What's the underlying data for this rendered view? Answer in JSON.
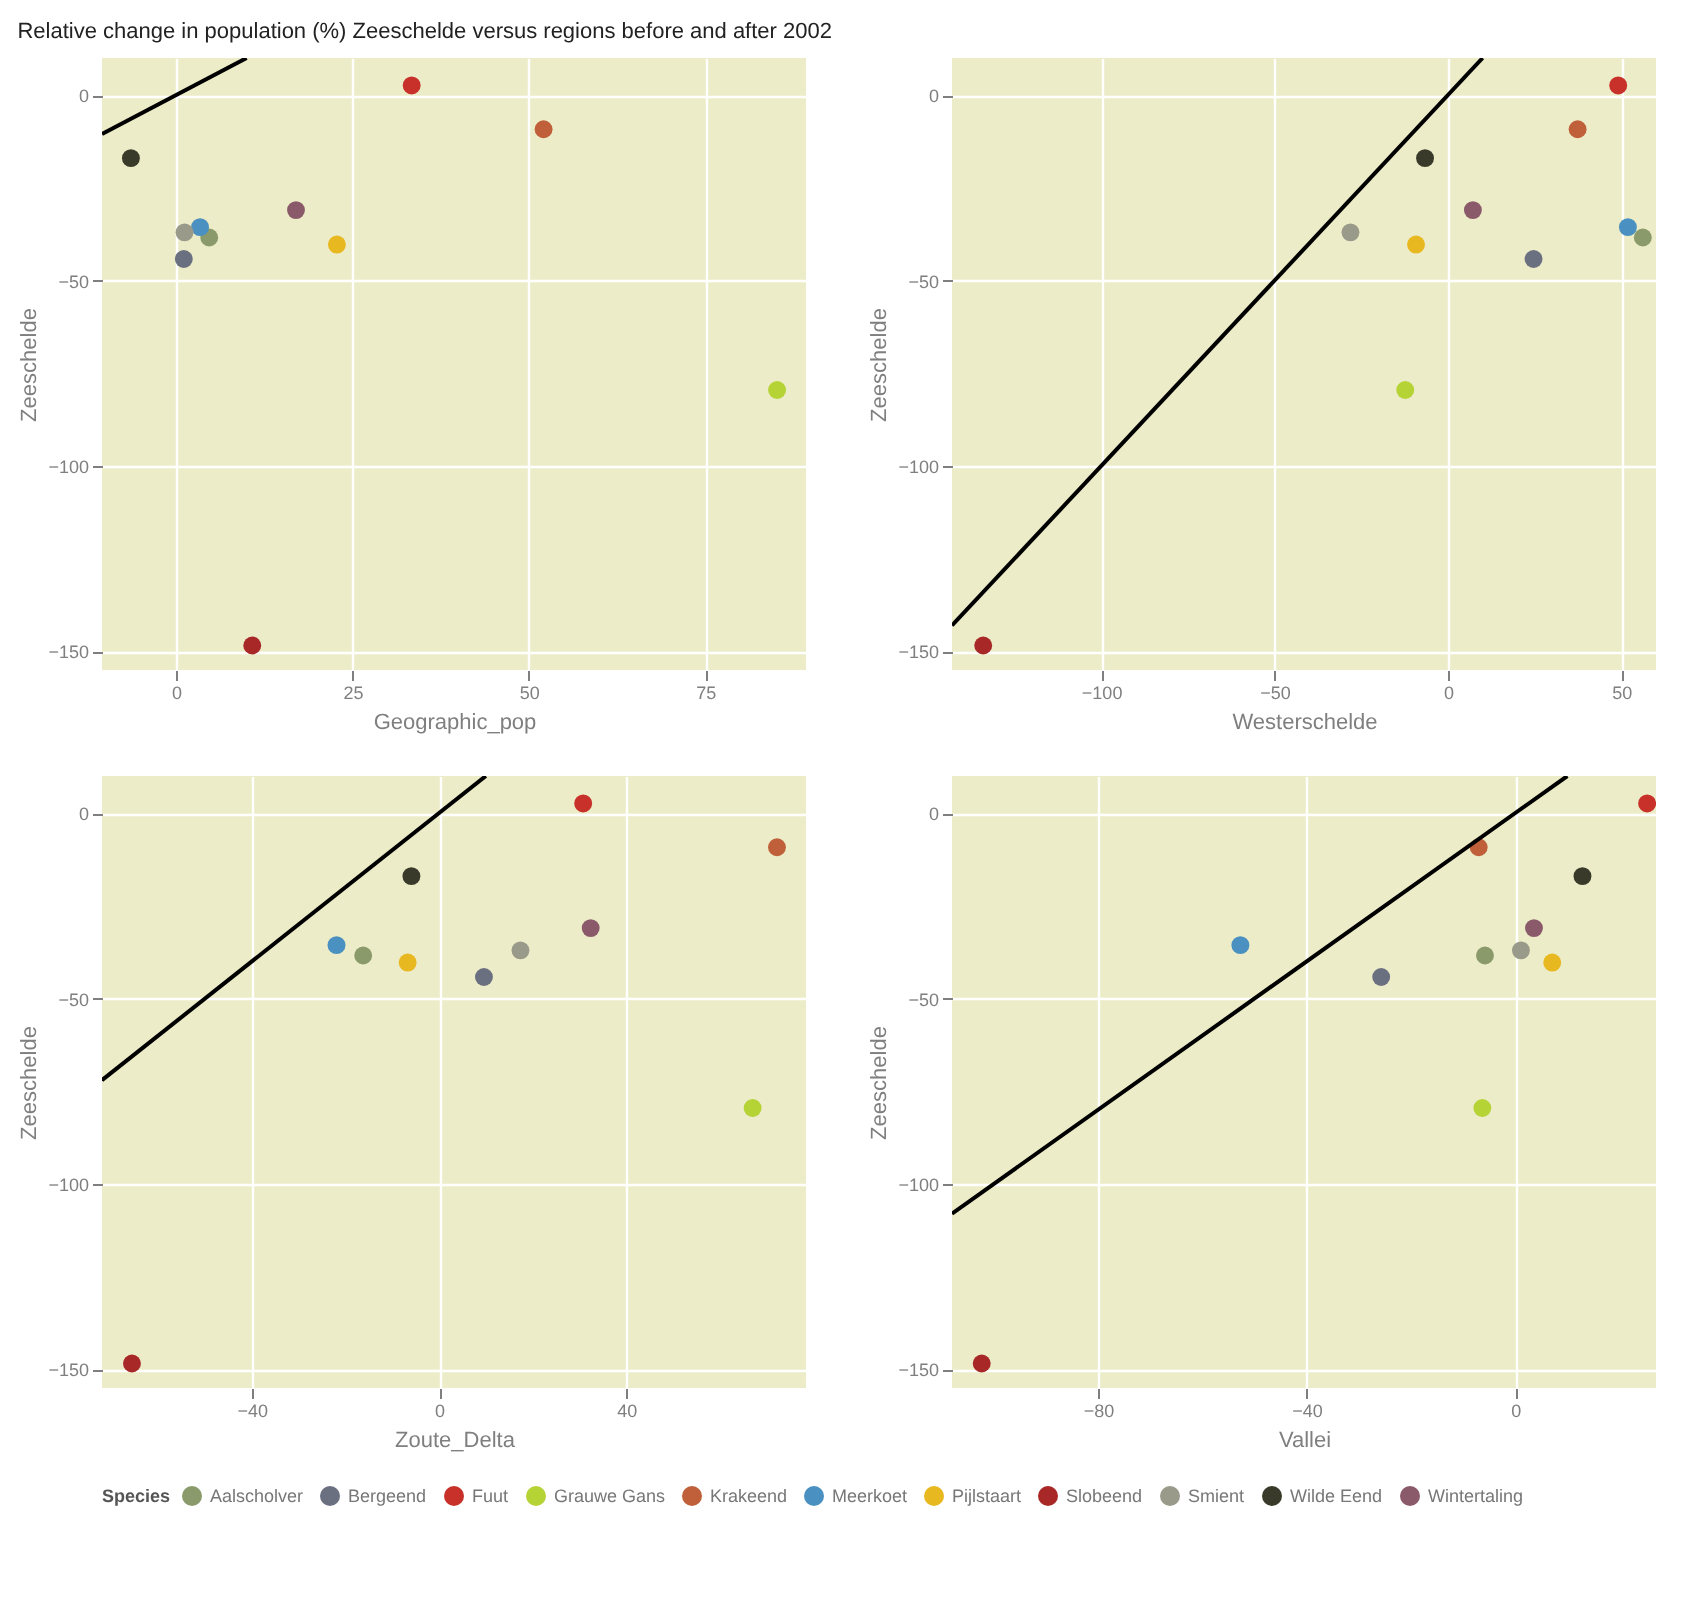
{
  "chart_data": [
    {
      "type": "scatter",
      "title": "Relative change in population (%) Zeeschelde versus regions before and after 2002",
      "xlabel": "Geographic_pop",
      "ylabel": "Zeeschelde",
      "legend": "bottom",
      "legend_title": "Species",
      "marker": "circle",
      "grid": true,
      "xlim": [
        -10.5,
        89.3
      ],
      "ylim": [
        -155,
        10
      ],
      "xticks": [
        0,
        25,
        50,
        75
      ],
      "yticks": [
        -150,
        -100,
        -50,
        0
      ],
      "series": [
        {
          "name": "Aalscholver",
          "color": "#8b9a6b",
          "x": [
            4.7
          ],
          "values": [
            -38.4
          ]
        },
        {
          "name": "Bergeend",
          "color": "#6b7080",
          "x": [
            1.1
          ],
          "values": [
            -44.2
          ]
        },
        {
          "name": "Fuut",
          "color": "#c8302a",
          "x": [
            33.4
          ],
          "values": [
            2.6
          ]
        },
        {
          "name": "Grauwe Gans",
          "color": "#b5d334",
          "x": [
            85.2
          ],
          "values": [
            -79.5
          ]
        },
        {
          "name": "Krakeend",
          "color": "#c0603a",
          "x": [
            52.1
          ],
          "values": [
            -9.2
          ]
        },
        {
          "name": "Meerkoet",
          "color": "#4a90c0",
          "x": [
            3.4
          ],
          "values": [
            -35.6
          ]
        },
        {
          "name": "Pijlstaart",
          "color": "#e8b820",
          "x": [
            22.8
          ],
          "values": [
            -40.3
          ]
        },
        {
          "name": "Slobeend",
          "color": "#a82828",
          "x": [
            10.8
          ],
          "values": [
            -148.4
          ]
        },
        {
          "name": "Smient",
          "color": "#9a9a8a",
          "x": [
            1.2
          ],
          "values": [
            -37.0
          ]
        },
        {
          "name": "Wilde Eend",
          "color": "#3a3a2a",
          "x": [
            -6.4
          ],
          "values": [
            -17.0
          ]
        },
        {
          "name": "Wintertaling",
          "color": "#8a5a6a",
          "x": [
            17.0
          ],
          "values": [
            -31.0
          ]
        },
        {
          "type": "line",
          "marker": "none",
          "color": "#000000",
          "x": [
            -10.5,
            10
          ],
          "values": [
            -10.5,
            10
          ]
        }
      ]
    },
    {
      "type": "scatter",
      "xlabel": "Westerschelde",
      "ylabel": "Zeeschelde",
      "marker": "circle",
      "grid": true,
      "xlim": [
        -143,
        60
      ],
      "ylim": [
        -155,
        10
      ],
      "xticks": [
        -100,
        -50,
        0,
        50
      ],
      "yticks": [
        -150,
        -100,
        -50,
        0
      ],
      "series": [
        {
          "name": "Aalscholver",
          "color": "#8b9a6b",
          "x": [
            56.2
          ],
          "values": [
            -38.4
          ]
        },
        {
          "name": "Bergeend",
          "color": "#6b7080",
          "x": [
            24.7
          ],
          "values": [
            -44.2
          ]
        },
        {
          "name": "Fuut",
          "color": "#c8302a",
          "x": [
            49.1
          ],
          "values": [
            2.6
          ]
        },
        {
          "name": "Grauwe Gans",
          "color": "#b5d334",
          "x": [
            -12.3
          ],
          "values": [
            -79.5
          ]
        },
        {
          "name": "Krakeend",
          "color": "#c0603a",
          "x": [
            37.4
          ],
          "values": [
            -9.2
          ]
        },
        {
          "name": "Meerkoet",
          "color": "#4a90c0",
          "x": [
            51.9
          ],
          "values": [
            -35.6
          ]
        },
        {
          "name": "Pijlstaart",
          "color": "#e8b820",
          "x": [
            -9.2
          ],
          "values": [
            -40.3
          ]
        },
        {
          "name": "Slobeend",
          "color": "#a82828",
          "x": [
            -134
          ],
          "values": [
            -148.4
          ]
        },
        {
          "name": "Smient",
          "color": "#9a9a8a",
          "x": [
            -28.1
          ],
          "values": [
            -37.0
          ]
        },
        {
          "name": "Wilde Eend",
          "color": "#3a3a2a",
          "x": [
            -6.6
          ],
          "values": [
            -17.0
          ]
        },
        {
          "name": "Wintertaling",
          "color": "#8a5a6a",
          "x": [
            7.2
          ],
          "values": [
            -31.0
          ]
        },
        {
          "type": "line",
          "marker": "none",
          "color": "#000000",
          "x": [
            -143,
            10
          ],
          "values": [
            -143,
            10
          ]
        }
      ]
    },
    {
      "type": "scatter",
      "xlabel": "Zoute_Delta",
      "ylabel": "Zeeschelde",
      "marker": "circle",
      "grid": true,
      "xlim": [
        -72,
        78.4
      ],
      "ylim": [
        -155,
        10
      ],
      "xticks": [
        -40,
        0,
        40
      ],
      "yticks": [
        -150,
        -100,
        -50,
        0
      ],
      "series": [
        {
          "name": "Aalscholver",
          "color": "#8b9a6b",
          "x": [
            -16.2
          ],
          "values": [
            -38.4
          ]
        },
        {
          "name": "Bergeend",
          "color": "#6b7080",
          "x": [
            9.6
          ],
          "values": [
            -44.2
          ]
        },
        {
          "name": "Fuut",
          "color": "#c8302a",
          "x": [
            30.8
          ],
          "values": [
            2.6
          ]
        },
        {
          "name": "Grauwe Gans",
          "color": "#b5d334",
          "x": [
            67
          ],
          "values": [
            -79.5
          ]
        },
        {
          "name": "Krakeend",
          "color": "#c0603a",
          "x": [
            72.2
          ],
          "values": [
            -9.2
          ]
        },
        {
          "name": "Meerkoet",
          "color": "#4a90c0",
          "x": [
            -21.9
          ],
          "values": [
            -35.6
          ]
        },
        {
          "name": "Pijlstaart",
          "color": "#e8b820",
          "x": [
            -6.7
          ],
          "values": [
            -40.3
          ]
        },
        {
          "name": "Slobeend",
          "color": "#a82828",
          "x": [
            -65.6
          ],
          "values": [
            -148.4
          ]
        },
        {
          "name": "Smient",
          "color": "#9a9a8a",
          "x": [
            17.4
          ],
          "values": [
            -37.0
          ]
        },
        {
          "name": "Wilde Eend",
          "color": "#3a3a2a",
          "x": [
            -5.9
          ],
          "values": [
            -17.0
          ]
        },
        {
          "name": "Wintertaling",
          "color": "#8a5a6a",
          "x": [
            32.4
          ],
          "values": [
            -31.0
          ]
        },
        {
          "type": "line",
          "marker": "none",
          "color": "#000000",
          "x": [
            -72,
            10
          ],
          "values": [
            -72,
            10
          ]
        }
      ]
    },
    {
      "type": "scatter",
      "xlabel": "Vallei",
      "ylabel": "Zeeschelde",
      "marker": "circle",
      "grid": true,
      "xlim": [
        -108,
        27
      ],
      "ylim": [
        -155,
        10
      ],
      "xticks": [
        -80,
        -40,
        0
      ],
      "yticks": [
        -150,
        -100,
        -50,
        0
      ],
      "series": [
        {
          "name": "Aalscholver",
          "color": "#8b9a6b",
          "x": [
            -5.8
          ],
          "values": [
            -38.4
          ]
        },
        {
          "name": "Bergeend",
          "color": "#6b7080",
          "x": [
            -25.7
          ],
          "values": [
            -44.2
          ]
        },
        {
          "name": "Fuut",
          "color": "#c8302a",
          "x": [
            25.3
          ],
          "values": [
            2.6
          ]
        },
        {
          "name": "Grauwe Gans",
          "color": "#b5d334",
          "x": [
            -6.3
          ],
          "values": [
            -79.5
          ]
        },
        {
          "name": "Krakeend",
          "color": "#c0603a",
          "x": [
            -7.0
          ],
          "values": [
            -9.2
          ]
        },
        {
          "name": "Meerkoet",
          "color": "#4a90c0",
          "x": [
            -52.7
          ],
          "values": [
            -35.6
          ]
        },
        {
          "name": "Pijlstaart",
          "color": "#e8b820",
          "x": [
            7.1
          ],
          "values": [
            -40.3
          ]
        },
        {
          "name": "Slobeend",
          "color": "#a82828",
          "x": [
            -102.3
          ],
          "values": [
            -148.4
          ]
        },
        {
          "name": "Smient",
          "color": "#9a9a8a",
          "x": [
            1.1
          ],
          "values": [
            -37.0
          ]
        },
        {
          "name": "Wilde Eend",
          "color": "#3a3a2a",
          "x": [
            12.9
          ],
          "values": [
            -17.0
          ]
        },
        {
          "name": "Wintertaling",
          "color": "#8a5a6a",
          "x": [
            3.6
          ],
          "values": [
            -31.0
          ]
        },
        {
          "type": "line",
          "marker": "none",
          "color": "#000000",
          "x": [
            -108,
            10
          ],
          "values": [
            -108,
            10
          ]
        }
      ]
    }
  ]
}
